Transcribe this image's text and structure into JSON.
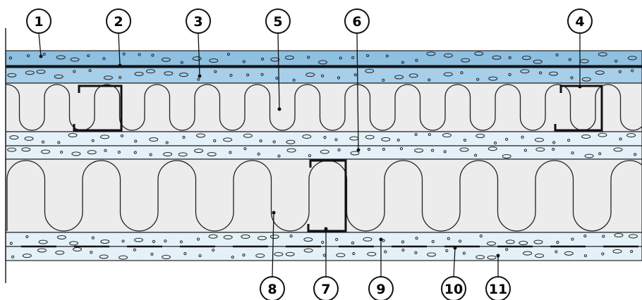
{
  "callouts": [
    "1",
    "2",
    "3",
    "4",
    "5",
    "6",
    "7",
    "8",
    "9",
    "10",
    "11"
  ]
}
